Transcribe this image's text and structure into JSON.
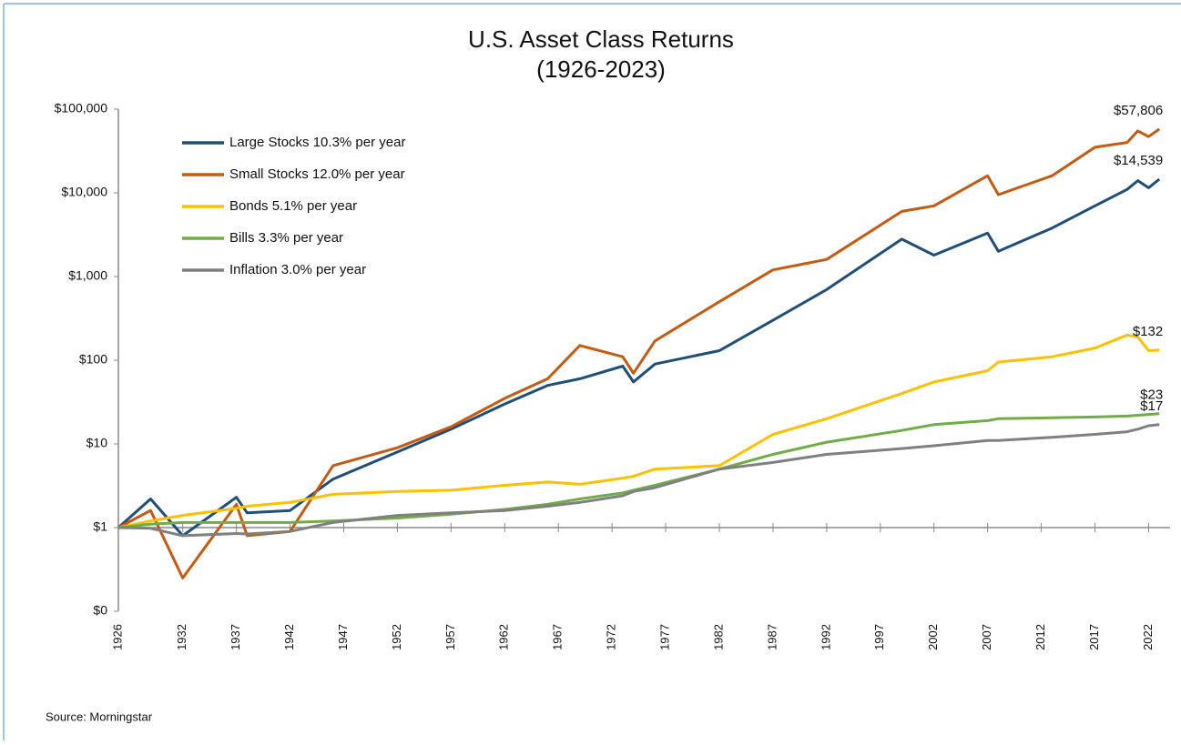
{
  "chart_data": {
    "type": "line",
    "title": "U.S. Asset Class Returns",
    "subtitle": "(1926-2023)",
    "source": "Source:  Morningstar",
    "log_scale": true,
    "grid": false,
    "legend": "upper left",
    "x": [
      1926,
      1929,
      1932,
      1937,
      1938,
      1942,
      1946,
      1952,
      1957,
      1962,
      1966,
      1969,
      1973,
      1974,
      1976,
      1982,
      1987,
      1992,
      1999,
      2002,
      2007,
      2008,
      2013,
      2017,
      2020,
      2021,
      2022,
      2023
    ],
    "xlim": [
      1926,
      2024
    ],
    "xticks": [
      1926,
      1932,
      1937,
      1942,
      1947,
      1952,
      1957,
      1962,
      1967,
      1972,
      1977,
      1982,
      1987,
      1992,
      1997,
      2002,
      2007,
      2012,
      2017,
      2022
    ],
    "ylim": [
      0.1,
      100000
    ],
    "yticks": [
      {
        "value": 0.1,
        "label": "$0"
      },
      {
        "value": 1,
        "label": "$1"
      },
      {
        "value": 10,
        "label": "$10"
      },
      {
        "value": 100,
        "label": "$100"
      },
      {
        "value": 1000,
        "label": "$1,000"
      },
      {
        "value": 10000,
        "label": "$10,000"
      },
      {
        "value": 100000,
        "label": "$100,000"
      }
    ],
    "series": [
      {
        "name": "Large Stocks 10.3% per year",
        "color": "#1f4e79",
        "end_label": "$14,539",
        "values": [
          1,
          2.2,
          0.8,
          2.3,
          1.5,
          1.6,
          3.8,
          8,
          15,
          30,
          50,
          60,
          85,
          55,
          90,
          130,
          300,
          700,
          2800,
          1800,
          3300,
          2000,
          3800,
          7000,
          11000,
          14000,
          11500,
          14539
        ]
      },
      {
        "name": "Small Stocks 12.0% per year",
        "color": "#c55a11",
        "end_label": "$57,806",
        "values": [
          1,
          1.6,
          0.25,
          1.9,
          0.8,
          0.9,
          5.5,
          9,
          16,
          35,
          60,
          150,
          110,
          70,
          170,
          500,
          1200,
          1600,
          6000,
          7000,
          16000,
          9500,
          16000,
          35000,
          40000,
          55000,
          47000,
          57806
        ]
      },
      {
        "name": "Bonds 5.1% per year",
        "color": "#ffc000",
        "end_label": "$132",
        "values": [
          1,
          1.2,
          1.4,
          1.7,
          1.8,
          2.0,
          2.5,
          2.7,
          2.8,
          3.2,
          3.5,
          3.3,
          3.9,
          4.1,
          5.0,
          5.5,
          13,
          20,
          40,
          55,
          75,
          95,
          110,
          140,
          200,
          190,
          130,
          132
        ]
      },
      {
        "name": "Bills 3.3% per year",
        "color": "#70ad47",
        "end_label": "$23",
        "values": [
          1,
          1.1,
          1.15,
          1.15,
          1.15,
          1.15,
          1.2,
          1.3,
          1.45,
          1.65,
          1.9,
          2.2,
          2.6,
          2.8,
          3.2,
          5.0,
          7.5,
          10.5,
          14.5,
          17,
          19,
          20,
          20.5,
          21,
          21.5,
          22,
          22.5,
          23
        ]
      },
      {
        "name": "Inflation 3.0% per year",
        "color": "#808080",
        "end_label": "$17",
        "values": [
          1,
          0.98,
          0.8,
          0.85,
          0.84,
          0.9,
          1.15,
          1.4,
          1.5,
          1.6,
          1.8,
          2.0,
          2.4,
          2.7,
          3.0,
          5.0,
          6.0,
          7.5,
          8.8,
          9.5,
          11,
          11,
          12,
          13,
          14,
          15,
          16.5,
          17
        ]
      }
    ]
  }
}
